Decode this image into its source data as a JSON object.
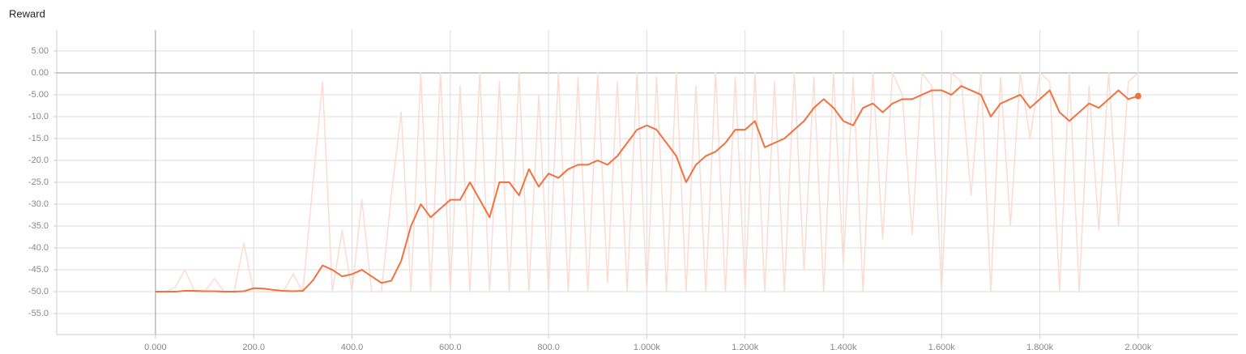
{
  "chart_data": {
    "type": "line",
    "title": "Reward",
    "x": [
      0,
      20,
      40,
      60,
      80,
      100,
      120,
      140,
      160,
      180,
      200,
      220,
      240,
      260,
      280,
      300,
      320,
      340,
      360,
      380,
      400,
      420,
      440,
      460,
      480,
      500,
      520,
      540,
      560,
      580,
      600,
      620,
      640,
      660,
      680,
      700,
      720,
      740,
      760,
      780,
      800,
      820,
      840,
      860,
      880,
      900,
      920,
      940,
      960,
      980,
      1000,
      1020,
      1040,
      1060,
      1080,
      1100,
      1120,
      1140,
      1160,
      1180,
      1200,
      1220,
      1240,
      1260,
      1280,
      1300,
      1320,
      1340,
      1360,
      1380,
      1400,
      1420,
      1440,
      1460,
      1480,
      1500,
      1520,
      1540,
      1560,
      1580,
      1600,
      1620,
      1640,
      1660,
      1680,
      1700,
      1720,
      1740,
      1760,
      1780,
      1800,
      1820,
      1840,
      1860,
      1880,
      1900,
      1920,
      1940,
      1960,
      1980,
      2000
    ],
    "series": [
      {
        "color": "#fcdcd2",
        "values": [
          -50,
          -50,
          -49,
          -45,
          -50,
          -50,
          -47,
          -50,
          -50,
          -39,
          -50,
          -50,
          -50,
          -50,
          -46,
          -50,
          -26,
          -2,
          -50,
          -36,
          -50,
          -29,
          -50,
          -50,
          -28,
          -9,
          -50,
          0,
          -50,
          0,
          -50,
          -3,
          -50,
          0,
          -50,
          -2,
          -50,
          0,
          -50,
          -5,
          -50,
          0,
          -50,
          -1,
          -50,
          0,
          -48,
          -2,
          -50,
          0,
          -50,
          -1,
          -50,
          0,
          -50,
          -3,
          -50,
          0,
          -50,
          -1,
          -50,
          0,
          -50,
          -2,
          -50,
          0,
          -45,
          -1,
          -50,
          0,
          -44,
          -1,
          -50,
          0,
          -38,
          0,
          -5,
          -37,
          0,
          -3,
          -50,
          0,
          -2,
          -28,
          0,
          -50,
          -1,
          -35,
          0,
          -15,
          0,
          -2,
          -50,
          0,
          -50,
          -3,
          -36,
          0,
          -35,
          -2,
          0
        ]
      },
      {
        "color": "#f4703e",
        "values": [
          -50,
          -50,
          -50,
          -49.8,
          -49.8,
          -49.9,
          -49.9,
          -50,
          -50,
          -49.9,
          -49.2,
          -49.3,
          -49.6,
          -49.8,
          -49.9,
          -49.8,
          -47.5,
          -44,
          -45,
          -46.5,
          -46,
          -45,
          -46.5,
          -48,
          -47.5,
          -43,
          -35,
          -30,
          -33,
          -31,
          -29,
          -29,
          -25,
          -29,
          -33,
          -25,
          -25,
          -28,
          -22,
          -26,
          -23,
          -24,
          -22,
          -21,
          -21,
          -20,
          -21,
          -19,
          -16,
          -13,
          -12,
          -13,
          -16,
          -19,
          -25,
          -21,
          -19,
          -18,
          -16,
          -13,
          -13,
          -11,
          -17,
          -16,
          -15,
          -13,
          -11,
          -8,
          -6,
          -8,
          -11,
          -12,
          -8,
          -7,
          -9,
          -7,
          -6,
          -6,
          -5,
          -4,
          -4,
          -5,
          -3,
          -4,
          -5,
          -10,
          -7,
          -6,
          -5,
          -8,
          -6,
          -4,
          -9,
          -11,
          -9,
          -7,
          -8,
          -6,
          -4,
          -6,
          -5.3
        ]
      }
    ],
    "xlim": [
      -201,
      2203
    ],
    "ylim": [
      -59.8,
      9.8
    ],
    "xticks": [
      {
        "value": 0,
        "label": "0.000"
      },
      {
        "value": 200,
        "label": "200.0"
      },
      {
        "value": 400,
        "label": "400.0"
      },
      {
        "value": 600,
        "label": "600.0"
      },
      {
        "value": 800,
        "label": "800.0"
      },
      {
        "value": 1000,
        "label": "1.000k"
      },
      {
        "value": 1200,
        "label": "1.200k"
      },
      {
        "value": 1400,
        "label": "1.400k"
      },
      {
        "value": 1600,
        "label": "1.600k"
      },
      {
        "value": 1800,
        "label": "1.800k"
      },
      {
        "value": 2000,
        "label": "2.000k"
      }
    ],
    "yticks": [
      {
        "value": 5,
        "label": "5.00"
      },
      {
        "value": 0,
        "label": "0.00"
      },
      {
        "value": -5,
        "label": "-5.00"
      },
      {
        "value": -10,
        "label": "-10.0"
      },
      {
        "value": -15,
        "label": "-15.0"
      },
      {
        "value": -20,
        "label": "-20.0"
      },
      {
        "value": -25,
        "label": "-25.0"
      },
      {
        "value": -30,
        "label": "-30.0"
      },
      {
        "value": -35,
        "label": "-35.0"
      },
      {
        "value": -40,
        "label": "-40.0"
      },
      {
        "value": -45,
        "label": "-45.0"
      },
      {
        "value": -50,
        "label": "-50.0"
      },
      {
        "value": -55,
        "label": "-55.0"
      }
    ],
    "grid": true
  }
}
